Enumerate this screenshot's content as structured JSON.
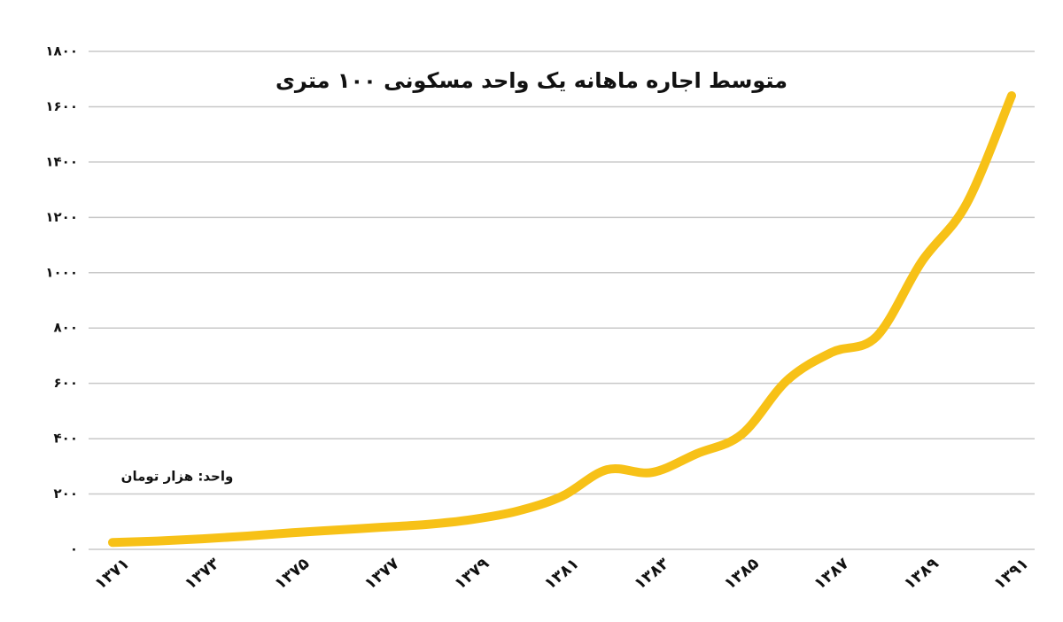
{
  "chart_data": {
    "type": "line",
    "title": "متوسط اجاره ماهانه یک واحد مسکونی ۱۰۰ متری",
    "annotation": "واحد: هزار تومان",
    "categories": [
      "۱۳۷۱",
      null,
      "۱۳۷۳",
      null,
      "۱۳۷۵",
      null,
      "۱۳۷۷",
      null,
      "۱۳۷۹",
      null,
      "۱۳۸۱",
      null,
      "۱۳۸۳",
      null,
      "۱۳۸۵",
      null,
      "۱۳۸۷",
      null,
      "۱۳۸۹",
      null,
      "۱۳۹۱"
    ],
    "values": [
      25,
      30,
      38,
      48,
      60,
      70,
      80,
      90,
      108,
      138,
      192,
      288,
      278,
      346,
      416,
      610,
      712,
      770,
      1040,
      1250,
      1640
    ],
    "color": "#f7c117",
    "ylim": [
      0,
      1800
    ],
    "yticks": [
      {
        "value": 0,
        "label": "۰"
      },
      {
        "value": 200,
        "label": "۲۰۰"
      },
      {
        "value": 400,
        "label": "۴۰۰"
      },
      {
        "value": 600,
        "label": "۶۰۰"
      },
      {
        "value": 800,
        "label": "۸۰۰"
      },
      {
        "value": 1000,
        "label": "۱۰۰۰"
      },
      {
        "value": 1200,
        "label": "۱۲۰۰"
      },
      {
        "value": 1400,
        "label": "۱۴۰۰"
      },
      {
        "value": 1600,
        "label": "۱۶۰۰"
      },
      {
        "value": 1800,
        "label": "۱۸۰۰"
      }
    ],
    "grid": true
  }
}
